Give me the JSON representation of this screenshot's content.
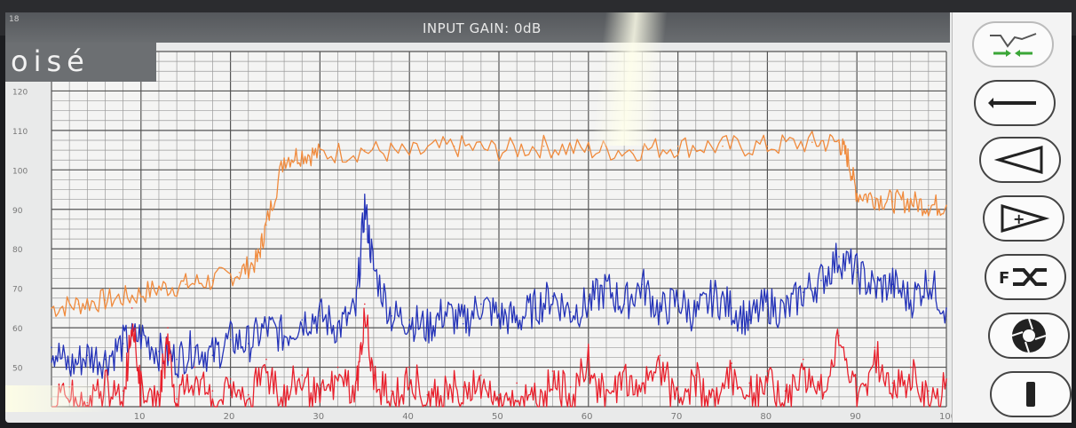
{
  "header": {
    "title": "INPUT GAIN: 0dB",
    "corner_number": "18"
  },
  "logo": {
    "text": "oisé"
  },
  "sidebar": {
    "buttons": [
      {
        "icon": "spectrum-zoom-icon"
      },
      {
        "icon": "horizontal-line-icon"
      },
      {
        "icon": "triangle-left-icon"
      },
      {
        "icon": "triangle-plus-icon",
        "label": "+"
      },
      {
        "icon": "shuffle-icon",
        "label": "F"
      },
      {
        "icon": "aperture-icon"
      },
      {
        "icon": "stop-bar-icon"
      }
    ]
  },
  "chart_data": {
    "type": "line",
    "xlabel": "",
    "ylabel": "",
    "xlim": [
      0,
      100
    ],
    "ylim": [
      40,
      130
    ],
    "x_ticks": [
      "10",
      "20",
      "30",
      "40",
      "50",
      "60",
      "70",
      "80",
      "90",
      "100"
    ],
    "y_ticks": [
      "50",
      "60",
      "70",
      "80",
      "90",
      "100",
      "110",
      "120"
    ],
    "grid": true,
    "series": [
      {
        "color": "#f08a3c",
        "x": [
          0,
          3,
          6,
          9,
          12,
          15,
          18,
          21,
          23,
          24,
          26,
          28,
          30,
          35,
          40,
          45,
          50,
          55,
          60,
          65,
          70,
          75,
          80,
          85,
          88,
          89,
          90,
          92,
          94,
          96,
          98,
          100
        ],
        "values": [
          65,
          66,
          67,
          68,
          70,
          71,
          72,
          74,
          77,
          86,
          103,
          104,
          104,
          105,
          104,
          106,
          105,
          106,
          105,
          105,
          106,
          106,
          106,
          107,
          107,
          103,
          94,
          93,
          92,
          92,
          91,
          91
        ]
      },
      {
        "color": "#2433b8",
        "x": [
          0,
          2,
          4,
          6,
          8,
          10,
          12,
          14,
          16,
          18,
          20,
          22,
          24,
          26,
          28,
          30,
          32,
          34,
          35,
          36,
          38,
          40,
          42,
          44,
          46,
          48,
          50,
          52,
          54,
          56,
          58,
          60,
          62,
          64,
          66,
          68,
          70,
          72,
          74,
          76,
          78,
          80,
          82,
          84,
          86,
          88,
          90,
          92,
          94,
          96,
          98,
          100
        ],
        "values": [
          55,
          50,
          53,
          52,
          56,
          58,
          54,
          52,
          55,
          53,
          57,
          56,
          60,
          58,
          62,
          63,
          60,
          64,
          91,
          75,
          63,
          62,
          60,
          64,
          61,
          66,
          63,
          62,
          65,
          68,
          64,
          66,
          70,
          66,
          71,
          64,
          67,
          63,
          68,
          65,
          62,
          66,
          64,
          69,
          72,
          78,
          74,
          70,
          71,
          67,
          72,
          65
        ]
      },
      {
        "color": "#e8202c",
        "x": [
          0,
          2,
          4,
          6,
          8,
          9,
          10,
          12,
          13,
          14,
          16,
          18,
          20,
          22,
          24,
          26,
          28,
          30,
          32,
          34,
          35,
          36,
          38,
          40,
          42,
          44,
          46,
          48,
          50,
          52,
          54,
          56,
          58,
          60,
          62,
          64,
          66,
          68,
          70,
          72,
          74,
          76,
          78,
          80,
          82,
          84,
          86,
          88,
          90,
          92,
          94,
          96,
          98,
          100
        ],
        "values": [
          42,
          45,
          41,
          48,
          44,
          65,
          46,
          43,
          60,
          42,
          50,
          44,
          47,
          43,
          52,
          45,
          48,
          44,
          50,
          46,
          66,
          48,
          44,
          50,
          43,
          47,
          45,
          48,
          43,
          46,
          44,
          49,
          45,
          52,
          44,
          50,
          46,
          53,
          45,
          48,
          44,
          51,
          46,
          49,
          44,
          52,
          47,
          58,
          45,
          55,
          46,
          50,
          44,
          47
        ]
      }
    ]
  }
}
